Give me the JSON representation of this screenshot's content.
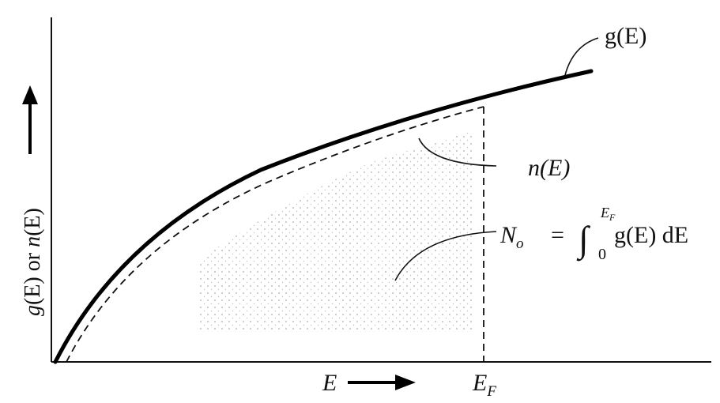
{
  "figure": {
    "curve_label": "g(E)",
    "filled_label": "n(E)",
    "integral_label": {
      "lhs": "N",
      "lhs_sub": "o",
      "equals": "=",
      "integral_sign": "∫",
      "upper_limit": "E",
      "upper_limit_sub": "F",
      "lower_limit": "0",
      "integrand": "g(E) dE"
    },
    "y_axis_label": {
      "g": "g",
      "g_arg": "(E)",
      "or": " or ",
      "n": "n",
      "n_arg": "(E)"
    },
    "x_axis_label": "E",
    "fermi_label": "E",
    "fermi_sub": "F"
  }
}
